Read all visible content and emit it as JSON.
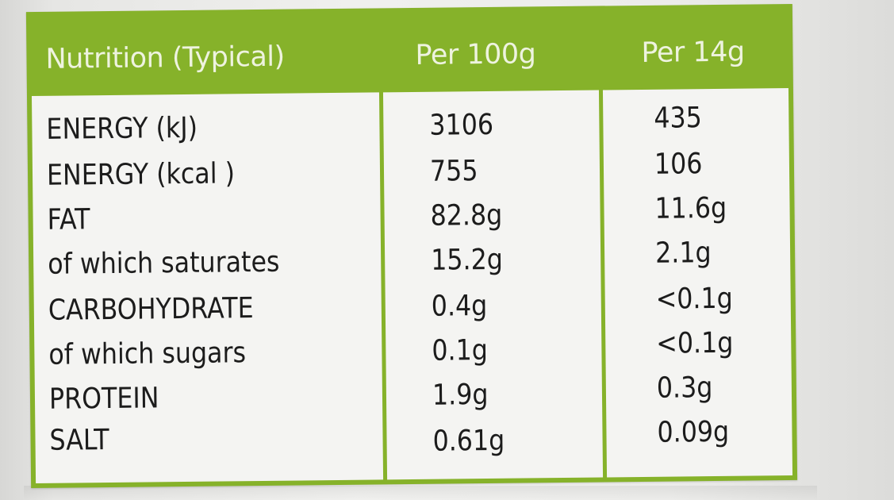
{
  "table": {
    "header": {
      "title": "Nutrition (Typical)",
      "col_per_100g": "Per 100g",
      "col_per_14g": "Per 14g"
    },
    "rows": [
      {
        "name": "ENERGY (kJ)",
        "per_100g": "3106",
        "per_14g": "435"
      },
      {
        "name": "ENERGY (kcal )",
        "per_100g": "755",
        "per_14g": "106"
      },
      {
        "name": "FAT",
        "per_100g": "82.8g",
        "per_14g": "11.6g"
      },
      {
        "name": "of which saturates",
        "per_100g": "15.2g",
        "per_14g": "2.1g"
      },
      {
        "name": "CARBOHYDRATE",
        "per_100g": "0.4g",
        "per_14g": "<0.1g"
      },
      {
        "name": "of which sugars",
        "per_100g": "0.1g",
        "per_14g": "<0.1g"
      },
      {
        "name": "PROTEIN",
        "per_100g": "1.9g",
        "per_14g": "0.3g"
      },
      {
        "name": "SALT",
        "per_100g": "0.61g",
        "per_14g": "0.09g"
      }
    ]
  },
  "colors": {
    "frame_green": "#86b22a",
    "header_text": "#eef3df",
    "cell_bg": "#f4f4f2",
    "text": "#1c1c1c"
  }
}
